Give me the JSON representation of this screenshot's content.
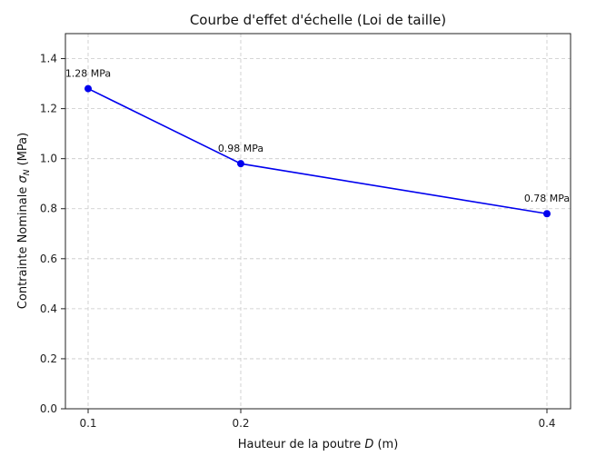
{
  "chart_data": {
    "type": "line",
    "title": "Courbe d'effet d'échelle (Loi de taille)",
    "xlabel": "Hauteur de la poutre D (m)",
    "ylabel": "Contrainte Nominale σN (MPa)",
    "xticks": [
      "0.1",
      "0.2",
      "0.4"
    ],
    "yticks": [
      "0.0",
      "0.2",
      "0.4",
      "0.6",
      "0.8",
      "1.0",
      "1.2",
      "1.4"
    ],
    "ylim": [
      0,
      1.5
    ],
    "grid": true,
    "series": [
      {
        "color": "#0000ee",
        "x": [
          0.1,
          0.2,
          0.4
        ],
        "y": [
          1.28,
          0.98,
          0.78
        ],
        "labels": [
          "1.28 MPa",
          "0.98 MPa",
          "0.78 MPa"
        ]
      }
    ]
  }
}
